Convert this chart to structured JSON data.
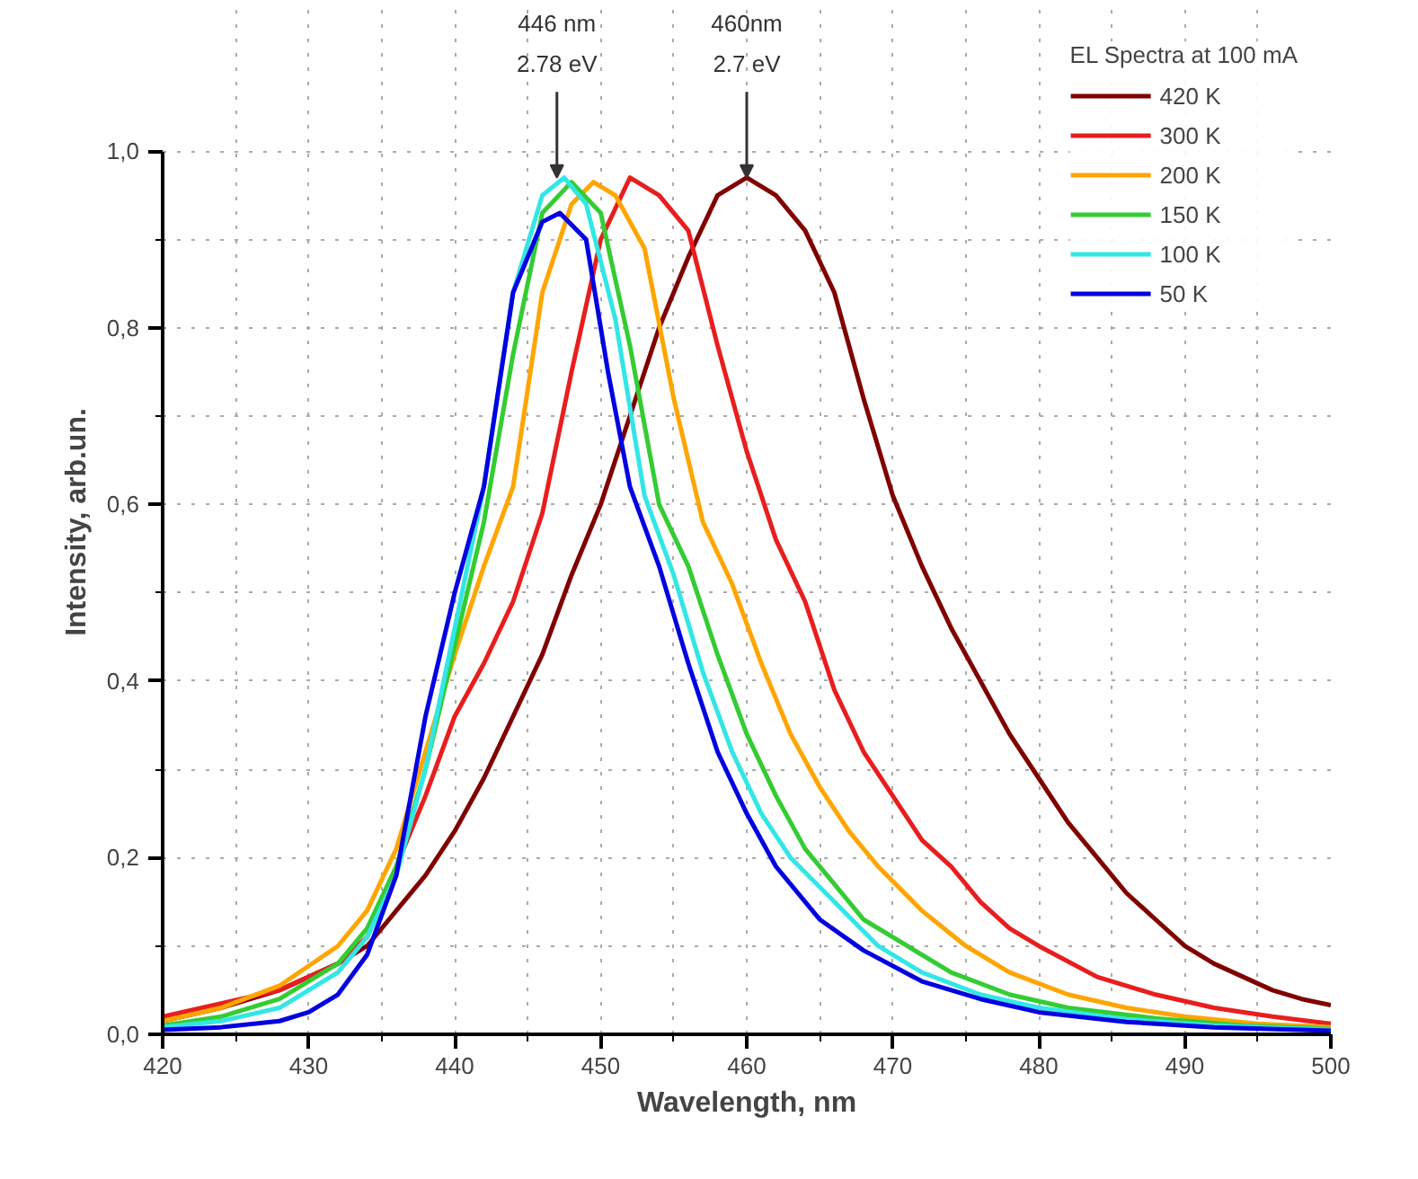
{
  "chart_data": {
    "type": "line",
    "xlabel": "Wavelength, nm",
    "ylabel": "Intensity, arb.un.",
    "legend_title": "EL Spectra at 100 mA",
    "legend": "top right",
    "grid": true,
    "line_style": "solid",
    "marker": "none",
    "xlim": [
      420,
      500
    ],
    "xticks": [
      420,
      430,
      440,
      450,
      460,
      470,
      480,
      490,
      500
    ],
    "ylim": [
      0,
      1.0
    ],
    "yticks": [
      {
        "value": 0,
        "label": "0,0"
      },
      {
        "value": 0.2,
        "label": "0,2"
      },
      {
        "value": 0.4,
        "label": "0,4"
      },
      {
        "value": 0.6,
        "label": "0,6"
      },
      {
        "value": 0.8,
        "label": "0,8"
      },
      {
        "value": 1.0,
        "label": "1,0"
      }
    ],
    "annotations": [
      {
        "text": "446 nm\n2.78 eV",
        "x": 447,
        "y": 0.97
      },
      {
        "text": "460nm\n2.7 eV",
        "x": 460,
        "y": 0.97
      }
    ],
    "series": [
      {
        "name": "420 K",
        "color": "#800000",
        "x": [
          420,
          424,
          428,
          432,
          434,
          436,
          438,
          440,
          442,
          444,
          446,
          448,
          450,
          452,
          454,
          456,
          458,
          460,
          462,
          464,
          466,
          468,
          470,
          472,
          474,
          476,
          478,
          480,
          482,
          484,
          486,
          488,
          490,
          492,
          494,
          496,
          498,
          500
        ],
        "values": [
          0.015,
          0.03,
          0.05,
          0.08,
          0.1,
          0.14,
          0.18,
          0.23,
          0.29,
          0.36,
          0.43,
          0.52,
          0.6,
          0.7,
          0.8,
          0.88,
          0.95,
          0.97,
          0.95,
          0.91,
          0.84,
          0.72,
          0.61,
          0.53,
          0.46,
          0.4,
          0.34,
          0.29,
          0.24,
          0.2,
          0.16,
          0.13,
          0.1,
          0.08,
          0.065,
          0.05,
          0.04,
          0.033
        ]
      },
      {
        "name": "300 K",
        "color": "#e81e1e",
        "x": [
          420,
          424,
          428,
          432,
          434,
          436,
          438,
          440,
          442,
          444,
          446,
          448,
          450,
          452,
          454,
          456,
          458,
          460,
          462,
          464,
          466,
          468,
          470,
          472,
          474,
          476,
          478,
          480,
          484,
          488,
          492,
          496,
          500
        ],
        "values": [
          0.02,
          0.035,
          0.05,
          0.08,
          0.11,
          0.19,
          0.27,
          0.36,
          0.42,
          0.49,
          0.59,
          0.75,
          0.9,
          0.97,
          0.95,
          0.91,
          0.78,
          0.66,
          0.56,
          0.49,
          0.39,
          0.32,
          0.27,
          0.22,
          0.19,
          0.15,
          0.12,
          0.1,
          0.065,
          0.045,
          0.03,
          0.02,
          0.012
        ]
      },
      {
        "name": "200 K",
        "color": "#ffa500",
        "x": [
          420,
          424,
          428,
          432,
          434,
          436,
          438,
          440,
          442,
          444,
          446,
          448,
          449.5,
          451,
          453,
          455,
          457,
          459,
          461,
          463,
          465,
          467,
          469,
          472,
          475,
          478,
          482,
          486,
          490,
          495,
          500
        ],
        "values": [
          0.015,
          0.03,
          0.055,
          0.1,
          0.14,
          0.21,
          0.32,
          0.43,
          0.53,
          0.62,
          0.84,
          0.94,
          0.965,
          0.95,
          0.89,
          0.72,
          0.58,
          0.51,
          0.42,
          0.34,
          0.28,
          0.23,
          0.19,
          0.14,
          0.1,
          0.07,
          0.045,
          0.03,
          0.02,
          0.012,
          0.008
        ]
      },
      {
        "name": "150 K",
        "color": "#33cc33",
        "x": [
          420,
          424,
          428,
          432,
          434,
          436,
          438,
          440,
          442,
          444,
          446,
          448,
          450,
          452,
          454,
          456,
          458,
          460,
          462,
          464,
          466,
          468,
          471,
          474,
          478,
          482,
          488,
          494,
          500
        ],
        "values": [
          0.01,
          0.02,
          0.04,
          0.08,
          0.12,
          0.19,
          0.3,
          0.44,
          0.58,
          0.77,
          0.93,
          0.965,
          0.93,
          0.78,
          0.6,
          0.53,
          0.43,
          0.34,
          0.27,
          0.21,
          0.17,
          0.13,
          0.1,
          0.07,
          0.045,
          0.03,
          0.018,
          0.01,
          0.006
        ]
      },
      {
        "name": "100 K",
        "color": "#33e6e6",
        "x": [
          420,
          424,
          428,
          432,
          434,
          436,
          438,
          440,
          442,
          444,
          446,
          447.5,
          449,
          451,
          453,
          455,
          457,
          459,
          461,
          463,
          466,
          469,
          472,
          476,
          480,
          486,
          492,
          500
        ],
        "values": [
          0.008,
          0.015,
          0.03,
          0.07,
          0.11,
          0.18,
          0.3,
          0.46,
          0.62,
          0.84,
          0.95,
          0.97,
          0.94,
          0.81,
          0.61,
          0.52,
          0.41,
          0.32,
          0.25,
          0.2,
          0.15,
          0.1,
          0.07,
          0.045,
          0.03,
          0.017,
          0.01,
          0.005
        ]
      },
      {
        "name": "50 K",
        "color": "#0000e0",
        "x": [
          420,
          424,
          428,
          430,
          432,
          434,
          436,
          438,
          440,
          442,
          444,
          446,
          447.2,
          449,
          450.5,
          452,
          454,
          456,
          458,
          460,
          462,
          465,
          468,
          472,
          476,
          480,
          486,
          492,
          500
        ],
        "values": [
          0.005,
          0.008,
          0.015,
          0.025,
          0.045,
          0.09,
          0.18,
          0.36,
          0.5,
          0.62,
          0.84,
          0.92,
          0.93,
          0.9,
          0.75,
          0.62,
          0.53,
          0.42,
          0.32,
          0.25,
          0.19,
          0.13,
          0.095,
          0.06,
          0.04,
          0.025,
          0.014,
          0.008,
          0.004
        ]
      }
    ]
  }
}
